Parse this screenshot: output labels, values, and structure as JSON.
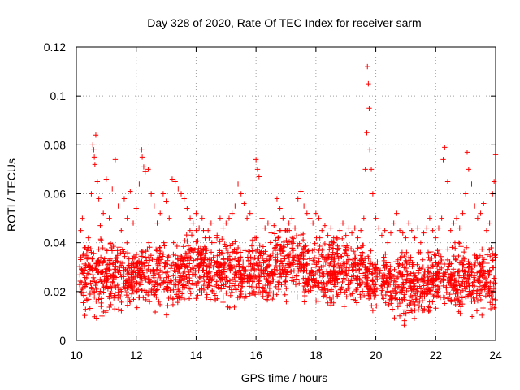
{
  "chart_data": {
    "type": "scatter",
    "title": "Day 328 of 2020, Rate Of TEC Index for receiver sarm",
    "xlabel": "GPS time / hours",
    "ylabel": "ROTI / TECUs",
    "xlim": [
      10,
      24
    ],
    "ylim": [
      0,
      0.12
    ],
    "xticks": [
      10,
      12,
      14,
      16,
      18,
      20,
      22,
      24
    ],
    "yticks": [
      0,
      0.02,
      0.04,
      0.06,
      0.08,
      0.1,
      0.12
    ],
    "xtick_labels": [
      "10",
      "12",
      "14",
      "16",
      "18",
      "20",
      "22",
      "24"
    ],
    "ytick_labels": [
      "0",
      "0.02",
      "0.04",
      "0.06",
      "0.08",
      "0.1",
      "0.12"
    ],
    "grid": true,
    "marker": "+",
    "series": [
      {
        "name": "ROTI",
        "color": "#ff0000",
        "x": [
          10.15,
          10.2,
          10.3,
          10.4,
          10.5,
          10.55,
          10.58,
          10.6,
          10.62,
          10.65,
          10.7,
          10.75,
          10.8,
          10.9,
          11.0,
          11.1,
          11.2,
          11.3,
          11.4,
          11.5,
          11.6,
          11.7,
          11.8,
          11.9,
          12.0,
          12.1,
          12.18,
          12.2,
          12.25,
          12.3,
          12.4,
          12.5,
          12.6,
          12.7,
          12.8,
          12.9,
          13.0,
          13.1,
          13.2,
          13.3,
          13.4,
          13.5,
          13.6,
          13.7,
          13.8,
          13.9,
          14.0,
          14.1,
          14.2,
          14.3,
          14.4,
          14.5,
          14.6,
          14.7,
          14.8,
          14.9,
          15.0,
          15.1,
          15.2,
          15.3,
          15.4,
          15.5,
          15.6,
          15.7,
          15.8,
          15.9,
          16.0,
          16.05,
          16.1,
          16.2,
          16.3,
          16.4,
          16.5,
          16.6,
          16.7,
          16.8,
          16.9,
          17.0,
          17.1,
          17.2,
          17.3,
          17.4,
          17.5,
          17.6,
          17.7,
          17.8,
          17.9,
          18.0,
          18.1,
          18.2,
          18.3,
          18.4,
          18.5,
          18.6,
          18.7,
          18.8,
          18.9,
          19.0,
          19.1,
          19.2,
          19.3,
          19.4,
          19.5,
          19.6,
          19.65,
          19.7,
          19.72,
          19.75,
          19.78,
          19.8,
          19.85,
          19.9,
          20.0,
          20.1,
          20.2,
          20.3,
          20.4,
          20.5,
          20.6,
          20.7,
          20.8,
          20.9,
          21.0,
          21.1,
          21.2,
          21.3,
          21.4,
          21.5,
          21.6,
          21.7,
          21.8,
          21.9,
          22.0,
          22.1,
          22.2,
          22.25,
          22.3,
          22.4,
          22.5,
          22.6,
          22.7,
          22.8,
          22.9,
          23.0,
          23.05,
          23.1,
          23.2,
          23.3,
          23.4,
          23.5,
          23.6,
          23.7,
          23.8,
          23.9,
          23.95,
          24.0
        ],
        "y": [
          0.045,
          0.05,
          0.038,
          0.042,
          0.06,
          0.08,
          0.078,
          0.075,
          0.072,
          0.084,
          0.065,
          0.058,
          0.047,
          0.052,
          0.066,
          0.05,
          0.062,
          0.074,
          0.055,
          0.045,
          0.058,
          0.05,
          0.061,
          0.048,
          0.054,
          0.064,
          0.078,
          0.075,
          0.071,
          0.069,
          0.07,
          0.06,
          0.055,
          0.048,
          0.052,
          0.06,
          0.057,
          0.05,
          0.066,
          0.065,
          0.062,
          0.06,
          0.058,
          0.054,
          0.05,
          0.048,
          0.052,
          0.046,
          0.05,
          0.042,
          0.045,
          0.048,
          0.04,
          0.043,
          0.05,
          0.046,
          0.048,
          0.05,
          0.052,
          0.055,
          0.064,
          0.06,
          0.056,
          0.05,
          0.052,
          0.062,
          0.074,
          0.07,
          0.067,
          0.05,
          0.046,
          0.048,
          0.044,
          0.047,
          0.058,
          0.054,
          0.05,
          0.045,
          0.048,
          0.05,
          0.046,
          0.058,
          0.061,
          0.055,
          0.052,
          0.05,
          0.048,
          0.052,
          0.05,
          0.045,
          0.047,
          0.043,
          0.046,
          0.04,
          0.042,
          0.045,
          0.048,
          0.043,
          0.046,
          0.044,
          0.046,
          0.042,
          0.045,
          0.05,
          0.07,
          0.085,
          0.112,
          0.105,
          0.095,
          0.078,
          0.07,
          0.06,
          0.05,
          0.046,
          0.043,
          0.045,
          0.04,
          0.044,
          0.048,
          0.052,
          0.045,
          0.044,
          0.042,
          0.048,
          0.045,
          0.042,
          0.046,
          0.04,
          0.044,
          0.046,
          0.05,
          0.045,
          0.042,
          0.046,
          0.05,
          0.074,
          0.079,
          0.065,
          0.045,
          0.048,
          0.05,
          0.046,
          0.052,
          0.06,
          0.077,
          0.07,
          0.064,
          0.055,
          0.05,
          0.052,
          0.056,
          0.045,
          0.048,
          0.06,
          0.065,
          0.076
        ]
      }
    ],
    "cloud": [
      {
        "from": 10.1,
        "to": 10.6,
        "low": 0.008,
        "high": 0.04
      },
      {
        "from": 10.6,
        "to": 11.0,
        "low": 0.005,
        "high": 0.042
      },
      {
        "from": 11.0,
        "to": 13.6,
        "low": 0.008,
        "high": 0.04
      },
      {
        "from": 13.6,
        "to": 14.3,
        "low": 0.012,
        "high": 0.045
      },
      {
        "from": 14.3,
        "to": 16.6,
        "low": 0.01,
        "high": 0.042
      },
      {
        "from": 16.6,
        "to": 17.6,
        "low": 0.014,
        "high": 0.045
      },
      {
        "from": 17.6,
        "to": 19.6,
        "low": 0.01,
        "high": 0.042
      },
      {
        "from": 19.6,
        "to": 20.5,
        "low": 0.008,
        "high": 0.038
      },
      {
        "from": 20.5,
        "to": 21.8,
        "low": 0.005,
        "high": 0.036
      },
      {
        "from": 21.8,
        "to": 24.0,
        "low": 0.006,
        "high": 0.04
      }
    ]
  }
}
